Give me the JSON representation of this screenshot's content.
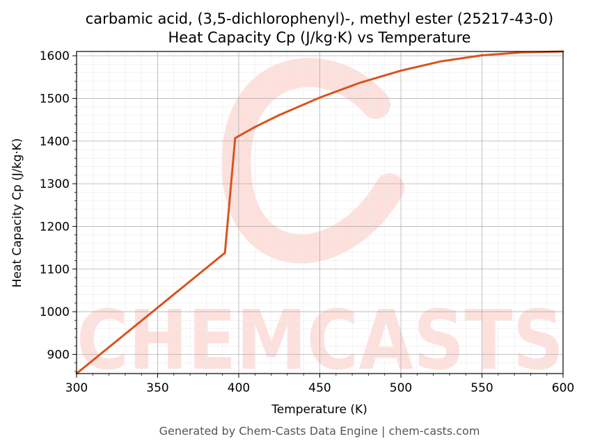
{
  "chart_data": {
    "type": "line",
    "title_line1": "carbamic acid, (3,5-dichlorophenyl)-, methyl ester (25217-43-0)",
    "title_line2": "Heat Capacity Cp (J/kg·K) vs Temperature",
    "xlabel": "Temperature (K)",
    "ylabel": "Heat Capacity Cp (J/kg·K)",
    "xlim": [
      300,
      600
    ],
    "ylim": [
      855,
      1610
    ],
    "x_ticks": [
      300,
      350,
      400,
      450,
      500,
      550,
      600
    ],
    "y_ticks": [
      900,
      1000,
      1100,
      1200,
      1300,
      1400,
      1500,
      1600
    ],
    "grid": true,
    "series": [
      {
        "color": "#d9531e",
        "x": [
          300,
          391.5,
          397.8,
          410,
          425,
          450,
          475,
          500,
          525,
          550,
          575,
          600
        ],
        "y": [
          855,
          1138,
          1407,
          1433,
          1461,
          1502,
          1537,
          1565,
          1587,
          1601,
          1608,
          1610
        ]
      }
    ]
  },
  "watermark": {
    "text": "CHEMCASTS",
    "color": "#fde0dc"
  },
  "footer": "Generated by Chem-Casts Data Engine | chem-casts.com"
}
